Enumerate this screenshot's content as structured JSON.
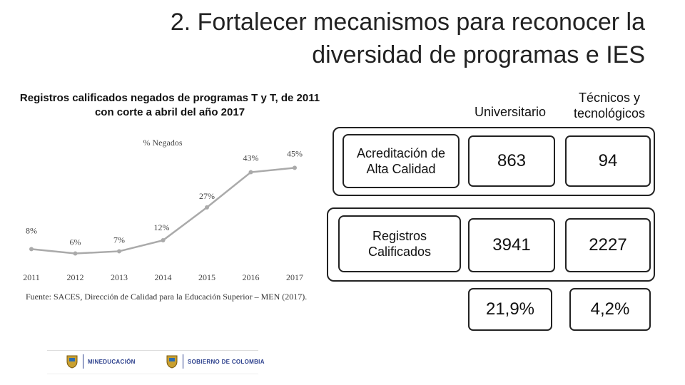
{
  "header": {
    "title_line1": "2.  Fortalecer mecanismos para reconocer la",
    "title_line2": "diversidad de programas e IES"
  },
  "left": {
    "subtitle": "Registros calificados negados de programas T y T, de 2011 con corte a abril del año 2017",
    "source": "Fuente: SACES, Dirección de Calidad para la Educación Superior – MEN (2017)."
  },
  "chart_data": {
    "type": "line",
    "title": "% Negados",
    "x": [
      "2011",
      "2012",
      "2013",
      "2014",
      "2015",
      "2016",
      "2017"
    ],
    "series": [
      {
        "values": [
          8,
          6,
          7,
          12,
          27,
          43,
          45
        ]
      }
    ],
    "data_labels": [
      "8%",
      "6%",
      "7%",
      "12%",
      "27%",
      "43%",
      "45%"
    ],
    "ylim": [
      0,
      50
    ],
    "grid": false,
    "line_color": "#aaaaaa"
  },
  "table": {
    "col_universitario": "Universitario",
    "col_tecnicos_1": "Técnicos y",
    "col_tecnicos_2": "tecnológicos",
    "row1_label_1": "Acreditación de",
    "row1_label_2": "Alta Calidad",
    "row1_univ": "863",
    "row1_tec": "94",
    "row2_label_1": "Registros",
    "row2_label_2": "Calificados",
    "row2_univ": "3941",
    "row2_tec": "2227",
    "pct_univ": "21,9%",
    "pct_tec": "4,2%"
  },
  "footer": {
    "logo1": "MINEDUCACIÓN",
    "logo2": "SOBIERNO DE COLOMBIA"
  },
  "colors": {
    "text": "#111111",
    "border": "#222222",
    "chart_line": "#aaaaaa",
    "logo": "#2b3f8c"
  }
}
